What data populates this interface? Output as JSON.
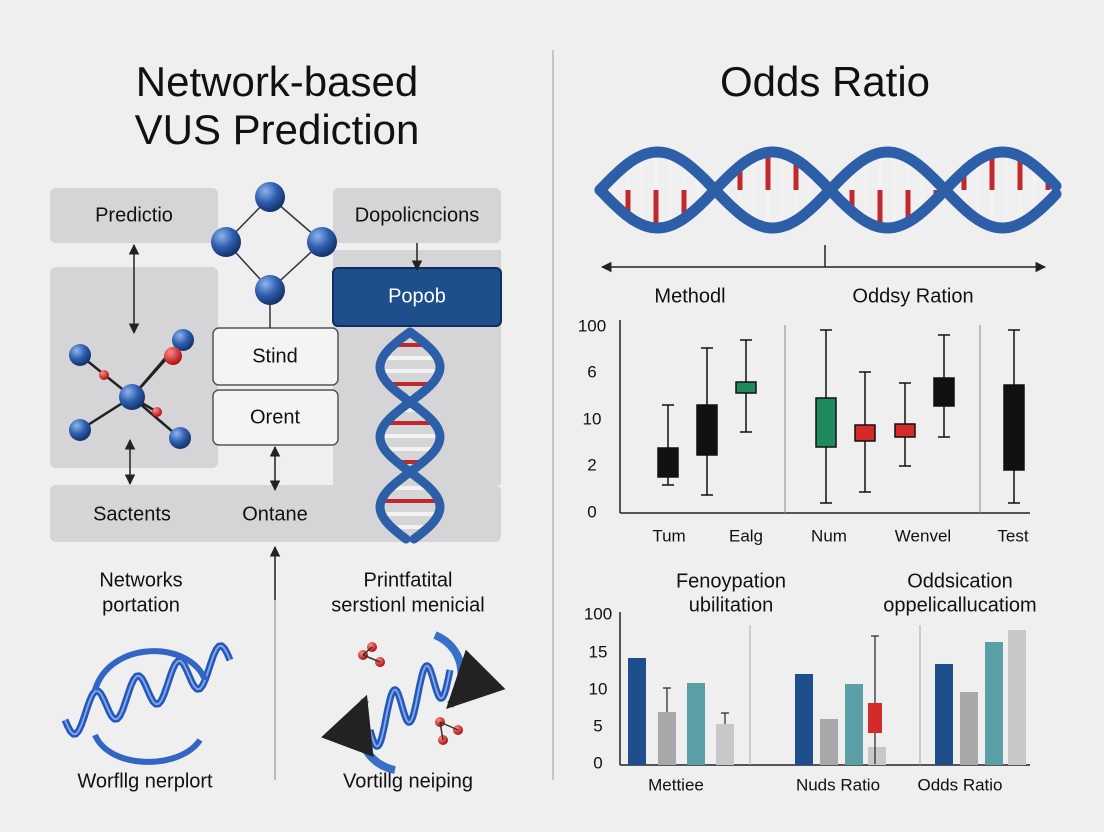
{
  "left": {
    "title": [
      "Network-based",
      "VUS Prediction"
    ],
    "boxes": {
      "top_left": "Predictio",
      "top_right": "Dopolicncions",
      "highlight": "Popob",
      "middle_1": "Stind",
      "middle_2": "Orent",
      "bottom_left": "Sactents",
      "bottom_center": "Ontane"
    },
    "panels": [
      {
        "heading": [
          "Networks",
          "portation"
        ],
        "caption": "Worfllg nerplort"
      },
      {
        "heading": [
          "Printfatital",
          "serstionl menicial"
        ],
        "caption": "Vortillg neiping"
      }
    ]
  },
  "right": {
    "title": "Odds Ratio",
    "headers": [
      "Methodl",
      "Oddsy Ration"
    ],
    "box_chart": {
      "tick_labels": [
        "100",
        "6",
        "10",
        "2",
        "0"
      ],
      "categories": [
        "Tum",
        "Ealg",
        "Num",
        "Wenvel",
        "Test"
      ]
    },
    "bar_chart": {
      "headings": [
        [
          "Fenoypation",
          "ubilitation"
        ],
        [
          "Oddsication",
          "oppelicallucatiom"
        ]
      ],
      "tick_labels": [
        "100",
        "15",
        "10",
        "5",
        "0"
      ],
      "categories": [
        "Mettiee",
        "Nuds Ratio",
        "Odds Ratio"
      ]
    }
  }
}
